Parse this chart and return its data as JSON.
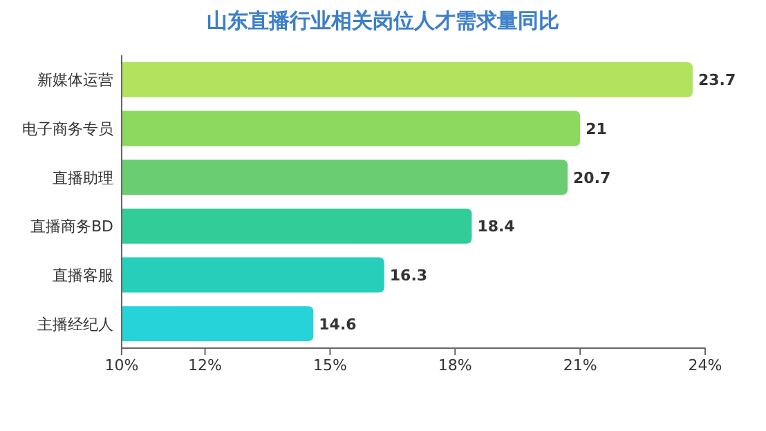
{
  "chart_data": {
    "type": "bar",
    "orientation": "horizontal",
    "title": "山东直播行业相关岗位人才需求量同比",
    "categories": [
      "新媒体运营",
      "电子商务专员",
      "直播助理",
      "直播商务BD",
      "直播客服",
      "主播经纪人"
    ],
    "values": [
      23.7,
      21,
      20.7,
      18.4,
      16.3,
      14.6
    ],
    "colors": [
      "#b2e35e",
      "#8dd85f",
      "#6acd72",
      "#31cc98",
      "#27cfba",
      "#26d3d9"
    ],
    "xlim": [
      10,
      24
    ],
    "xticks": [
      {
        "value": 10,
        "label": "10%"
      },
      {
        "value": 12,
        "label": "12%"
      },
      {
        "value": 15,
        "label": "15%"
      },
      {
        "value": 18,
        "label": "18%"
      },
      {
        "value": 21,
        "label": "21%"
      },
      {
        "value": 24,
        "label": "24%"
      }
    ],
    "data_labels": true
  }
}
